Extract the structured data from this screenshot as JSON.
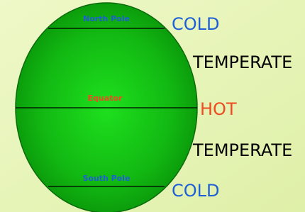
{
  "globe_labels": [
    "North Pole",
    "Equator",
    "South Pole"
  ],
  "zones": [
    "COLD",
    "TEMPERATE",
    "HOT",
    "TEMPERATE",
    "COLD"
  ]
}
